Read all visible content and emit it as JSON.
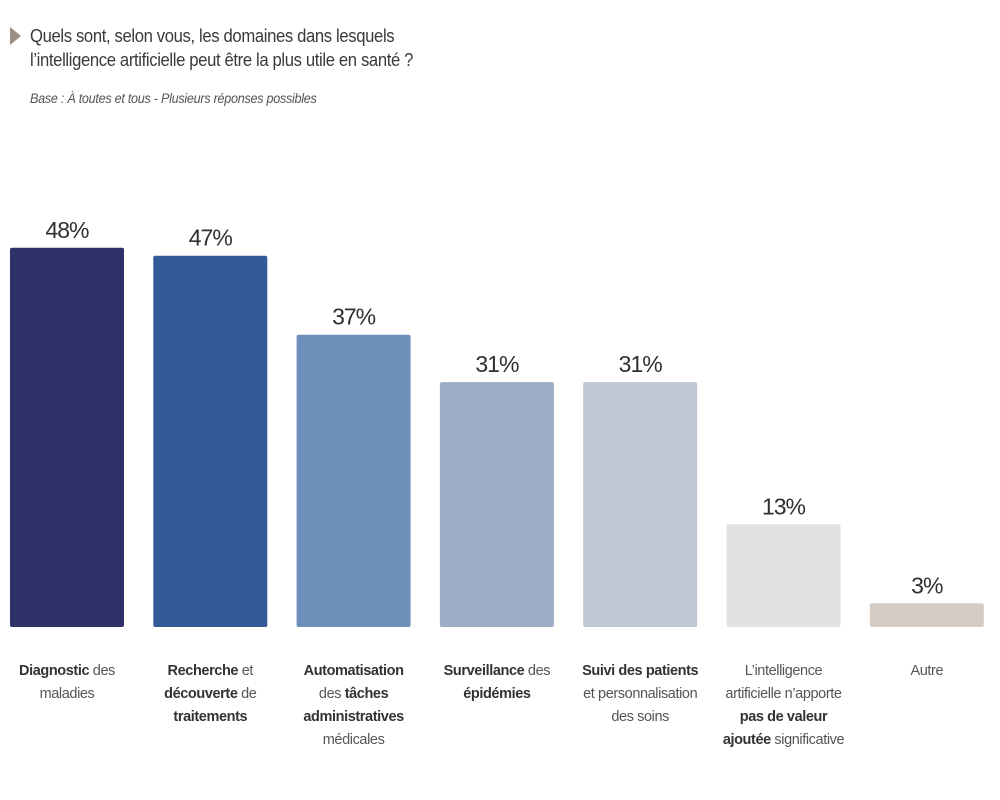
{
  "header": {
    "question_line1": "Quels sont, selon vous, les domaines dans lesquels",
    "question_line2": "l’intelligence artificielle peut être la plus utile en santé ?",
    "base_note": "Base : À toutes et tous - Plusieurs réponses possibles",
    "arrow_icon": "triangle-right-icon"
  },
  "chart_data": {
    "type": "bar",
    "title": "Quels sont, selon vous, les domaines dans lesquels l’intelligence artificielle peut être la plus utile en santé ?",
    "subtitle": "Base : À toutes et tous - Plusieurs réponses possibles",
    "xlabel": "",
    "ylabel": "",
    "ylim": [
      0,
      50
    ],
    "grid": false,
    "legend": "none",
    "unit": "%",
    "categories": [
      "Diagnostic des maladies",
      "Recherche et découverte de traitements",
      "Automatisation des tâches administratives médicales",
      "Surveillance des épidémies",
      "Suivi des patients et personnalisation des soins",
      "L’intelligence artificielle n’apporte pas de valeur ajoutée significative",
      "Autre"
    ],
    "values": [
      48,
      47,
      37,
      31,
      31,
      13,
      3
    ],
    "value_labels": [
      "48%",
      "47%",
      "37%",
      "31%",
      "31%",
      "13%",
      "3%"
    ],
    "colors": [
      "#2e3269",
      "#345a98",
      "#6f8fbb",
      "#9dacc7",
      "#bfc7d5",
      "#e2e2e4",
      "#d6ccc4"
    ],
    "category_labels_rich": [
      [
        [
          {
            "t": "Diagnostic",
            "b": true
          },
          {
            "t": " des",
            "b": false
          }
        ],
        [
          {
            "t": "maladies",
            "b": false
          }
        ]
      ],
      [
        [
          {
            "t": "Recherche",
            "b": true
          },
          {
            "t": " et",
            "b": false
          }
        ],
        [
          {
            "t": "découverte",
            "b": true
          },
          {
            "t": " de",
            "b": false
          }
        ],
        [
          {
            "t": "traitements",
            "b": true
          }
        ]
      ],
      [
        [
          {
            "t": "Automatisation",
            "b": true
          }
        ],
        [
          {
            "t": "des ",
            "b": false
          },
          {
            "t": "tâches",
            "b": true
          }
        ],
        [
          {
            "t": "administratives",
            "b": true
          }
        ],
        [
          {
            "t": "médicales",
            "b": false
          }
        ]
      ],
      [
        [
          {
            "t": "Surveillance",
            "b": true
          },
          {
            "t": " des",
            "b": false
          }
        ],
        [
          {
            "t": "épidémies",
            "b": true
          }
        ]
      ],
      [
        [
          {
            "t": "Suivi des patients",
            "b": true
          }
        ],
        [
          {
            "t": "et personnalisation",
            "b": false
          }
        ],
        [
          {
            "t": "des soins",
            "b": false
          }
        ]
      ],
      [
        [
          {
            "t": "L’intelligence",
            "b": false
          }
        ],
        [
          {
            "t": "artificielle n’apporte",
            "b": false
          }
        ],
        [
          {
            "t": "pas de valeur",
            "b": true
          }
        ],
        [
          {
            "t": "ajoutée",
            "b": true
          },
          {
            "t": " significative",
            "b": false
          }
        ]
      ],
      [
        [
          {
            "t": "Autre",
            "b": false
          }
        ]
      ]
    ]
  }
}
